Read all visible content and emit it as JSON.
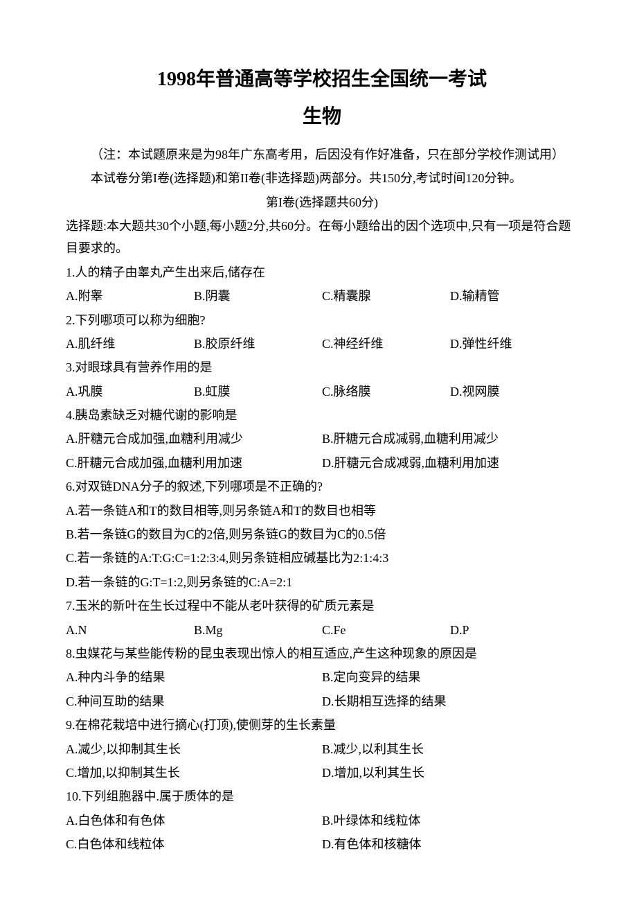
{
  "title": {
    "main": "1998年普通高等学校招生全国统一考试",
    "sub": "生物"
  },
  "note": "（注：本试题原来是为98年广东高考用，后因没有作好准备，只在部分学校作测试用）",
  "instruction": "本试卷分第I卷(选择题)和第II卷(非选择题)两部分。共150分,考试时间120分钟。",
  "section": {
    "title": "第I卷(选择题共60分)",
    "description": "选择题:本大题共30个小题,每小题2分,共60分。在每小题给出的因个选项中,只有一项是符合题目要求的。"
  },
  "questions": [
    {
      "text": "1.人的精子由睾丸产生出来后,储存在",
      "layout": "4col",
      "options": [
        "A.附睾",
        "B.阴囊",
        "C.精囊腺",
        "D.输精管"
      ]
    },
    {
      "text": "2.下列哪项可以称为细胞?",
      "layout": "4col",
      "options": [
        "A.肌纤维",
        "B.胶原纤维",
        "C.神经纤维",
        "D.弹性纤维"
      ]
    },
    {
      "text": "3.对眼球具有营养作用的是",
      "layout": "4col",
      "options": [
        "A.巩膜",
        "B.虹膜",
        "C.脉络膜",
        "D.视网膜"
      ]
    },
    {
      "text": "4.胰岛素缺乏对糖代谢的影响是",
      "layout": "2col",
      "options": [
        "A.肝糖元合成加强,血糖利用减少",
        "B.肝糖元合成减弱,血糖利用减少",
        "C.肝糖元合成加强,血糖利用加速",
        "D.肝糖元合成减弱,血糖利用加速"
      ]
    },
    {
      "text": "6.对双链DNA分子的叙述,下列哪项是不正确的?",
      "layout": "1col",
      "options": [
        "A.若一条链A和T的数目相等,则另条链A和T的数目也相等",
        "B.若一条链G的数目为C的2倍,则另条链G的数目为C的0.5倍",
        "C.若一条链的A:T:G:C=1:2:3:4,则另条链相应碱基比为2:1:4:3",
        "D.若一条链的G:T=1:2,则另条链的C:A=2:1"
      ]
    },
    {
      "text": "7.玉米的新叶在生长过程中不能从老叶获得的矿质元素是",
      "layout": "4col",
      "options": [
        "A.N",
        "B.Mg",
        "C.Fe",
        "D.P"
      ]
    },
    {
      "text": "8.虫媒花与某些能传粉的昆虫表现出惊人的相互适应,产生这种现象的原因是",
      "layout": "2col",
      "options": [
        "A.种内斗争的结果",
        "B.定向变异的结果",
        "C.种间互助的结果",
        "D.长期相互选择的结果"
      ]
    },
    {
      "text": "9.在棉花栽培中进行摘心(打顶),使侧芽的生长素量",
      "layout": "2col",
      "options": [
        "A.减少,以抑制其生长",
        "B.减少,以利其生长",
        "C.增加,以抑制其生长",
        "D.增加,以利其生长"
      ]
    },
    {
      "text": "10.下列组胞器中.属于质体的是",
      "layout": "2col",
      "options": [
        "A.白色体和有色体",
        "B.叶绿体和线粒体",
        "C.白色体和线粒体",
        "D.有色体和核糖体"
      ]
    }
  ]
}
